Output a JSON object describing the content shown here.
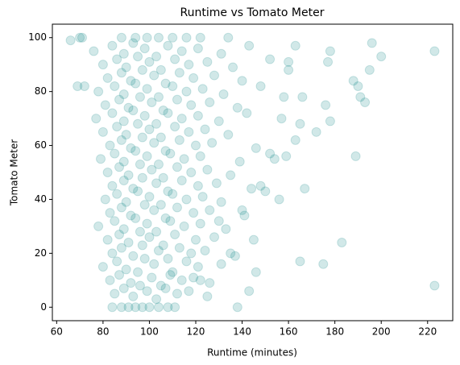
{
  "chart_data": {
    "type": "scatter",
    "title": "Runtime vs Tomato Meter",
    "x_label": "Runtime (minutes)",
    "y_label": "Tomato Meter",
    "color": "#008080",
    "alpha": 0.18,
    "xlim": [
      58.15,
      230.85
    ],
    "ylim": [
      -5,
      105
    ],
    "xticks": [
      60,
      80,
      100,
      120,
      140,
      160,
      180,
      200,
      220
    ],
    "yticks": [
      0,
      20,
      40,
      60,
      80,
      100
    ],
    "points": [
      [
        84,
        0
      ],
      [
        88,
        0
      ],
      [
        91,
        0
      ],
      [
        94,
        0
      ],
      [
        97,
        0
      ],
      [
        100,
        0
      ],
      [
        104,
        0
      ],
      [
        108,
        0
      ],
      [
        111,
        0
      ],
      [
        85,
        5
      ],
      [
        89,
        7
      ],
      [
        93,
        4
      ],
      [
        96,
        8
      ],
      [
        99,
        6
      ],
      [
        103,
        3
      ],
      [
        107,
        7
      ],
      [
        112,
        5
      ],
      [
        117,
        6
      ],
      [
        83,
        10
      ],
      [
        87,
        12
      ],
      [
        92,
        9
      ],
      [
        95,
        13
      ],
      [
        101,
        11
      ],
      [
        105,
        8
      ],
      [
        109,
        12
      ],
      [
        114,
        10
      ],
      [
        119,
        11
      ],
      [
        126,
        9
      ],
      [
        80,
        15
      ],
      [
        86,
        17
      ],
      [
        90,
        14
      ],
      [
        98,
        18
      ],
      [
        102,
        16
      ],
      [
        110,
        13
      ],
      [
        116,
        17
      ],
      [
        121,
        15
      ],
      [
        131,
        16
      ],
      [
        84,
        20
      ],
      [
        88,
        22
      ],
      [
        93,
        19
      ],
      [
        97,
        23
      ],
      [
        104,
        21
      ],
      [
        108,
        18
      ],
      [
        113,
        22
      ],
      [
        118,
        20
      ],
      [
        124,
        21
      ],
      [
        137,
        19
      ],
      [
        82,
        25
      ],
      [
        87,
        27
      ],
      [
        91,
        24
      ],
      [
        96,
        28
      ],
      [
        100,
        26
      ],
      [
        106,
        23
      ],
      [
        111,
        27
      ],
      [
        120,
        25
      ],
      [
        128,
        26
      ],
      [
        78,
        30
      ],
      [
        85,
        32
      ],
      [
        89,
        29
      ],
      [
        94,
        33
      ],
      [
        99,
        31
      ],
      [
        103,
        28
      ],
      [
        109,
        32
      ],
      [
        115,
        30
      ],
      [
        122,
        31
      ],
      [
        133,
        29
      ],
      [
        83,
        35
      ],
      [
        88,
        37
      ],
      [
        92,
        34
      ],
      [
        98,
        38
      ],
      [
        102,
        36
      ],
      [
        107,
        33
      ],
      [
        112,
        37
      ],
      [
        119,
        35
      ],
      [
        126,
        36
      ],
      [
        141,
        34
      ],
      [
        81,
        40
      ],
      [
        86,
        42
      ],
      [
        90,
        39
      ],
      [
        95,
        43
      ],
      [
        100,
        41
      ],
      [
        105,
        38
      ],
      [
        110,
        42
      ],
      [
        116,
        40
      ],
      [
        123,
        41
      ],
      [
        131,
        39
      ],
      [
        84,
        45
      ],
      [
        89,
        47
      ],
      [
        93,
        44
      ],
      [
        97,
        48
      ],
      [
        103,
        46
      ],
      [
        108,
        43
      ],
      [
        114,
        47
      ],
      [
        121,
        45
      ],
      [
        129,
        46
      ],
      [
        144,
        44
      ],
      [
        82,
        50
      ],
      [
        87,
        52
      ],
      [
        91,
        49
      ],
      [
        96,
        53
      ],
      [
        101,
        51
      ],
      [
        106,
        48
      ],
      [
        112,
        52
      ],
      [
        118,
        50
      ],
      [
        125,
        51
      ],
      [
        135,
        49
      ],
      [
        79,
        55
      ],
      [
        85,
        57
      ],
      [
        89,
        54
      ],
      [
        94,
        58
      ],
      [
        99,
        56
      ],
      [
        104,
        53
      ],
      [
        109,
        57
      ],
      [
        115,
        55
      ],
      [
        122,
        56
      ],
      [
        139,
        54
      ],
      [
        83,
        60
      ],
      [
        88,
        62
      ],
      [
        92,
        59
      ],
      [
        97,
        63
      ],
      [
        102,
        61
      ],
      [
        107,
        58
      ],
      [
        113,
        62
      ],
      [
        120,
        60
      ],
      [
        127,
        61
      ],
      [
        146,
        59
      ],
      [
        80,
        65
      ],
      [
        86,
        67
      ],
      [
        90,
        64
      ],
      [
        95,
        68
      ],
      [
        100,
        66
      ],
      [
        105,
        63
      ],
      [
        111,
        67
      ],
      [
        117,
        65
      ],
      [
        124,
        66
      ],
      [
        134,
        64
      ],
      [
        77,
        70
      ],
      [
        84,
        72
      ],
      [
        89,
        69
      ],
      [
        93,
        73
      ],
      [
        98,
        71
      ],
      [
        103,
        68
      ],
      [
        108,
        72
      ],
      [
        114,
        70
      ],
      [
        121,
        71
      ],
      [
        130,
        69
      ],
      [
        142,
        72
      ],
      [
        81,
        75
      ],
      [
        87,
        77
      ],
      [
        91,
        74
      ],
      [
        96,
        78
      ],
      [
        101,
        76
      ],
      [
        106,
        73
      ],
      [
        112,
        77
      ],
      [
        118,
        75
      ],
      [
        126,
        76
      ],
      [
        138,
        74
      ],
      [
        78,
        80
      ],
      [
        85,
        82
      ],
      [
        89,
        79
      ],
      [
        94,
        83
      ],
      [
        99,
        81
      ],
      [
        104,
        78
      ],
      [
        110,
        82
      ],
      [
        116,
        80
      ],
      [
        123,
        81
      ],
      [
        132,
        79
      ],
      [
        148,
        82
      ],
      [
        82,
        85
      ],
      [
        88,
        87
      ],
      [
        92,
        84
      ],
      [
        97,
        88
      ],
      [
        102,
        86
      ],
      [
        107,
        83
      ],
      [
        113,
        87
      ],
      [
        119,
        85
      ],
      [
        128,
        86
      ],
      [
        140,
        84
      ],
      [
        80,
        90
      ],
      [
        86,
        92
      ],
      [
        90,
        89
      ],
      [
        95,
        93
      ],
      [
        100,
        91
      ],
      [
        105,
        88
      ],
      [
        111,
        92
      ],
      [
        117,
        90
      ],
      [
        125,
        91
      ],
      [
        136,
        89
      ],
      [
        152,
        92
      ],
      [
        76,
        95
      ],
      [
        84,
        97
      ],
      [
        89,
        94
      ],
      [
        93,
        98
      ],
      [
        98,
        96
      ],
      [
        103,
        93
      ],
      [
        108,
        97
      ],
      [
        114,
        95
      ],
      [
        121,
        96
      ],
      [
        131,
        94
      ],
      [
        143,
        97
      ],
      [
        88,
        100
      ],
      [
        94,
        100
      ],
      [
        99,
        100
      ],
      [
        104,
        100
      ],
      [
        110,
        100
      ],
      [
        116,
        100
      ],
      [
        122,
        100
      ],
      [
        134,
        100
      ],
      [
        66,
        99
      ],
      [
        70,
        100
      ],
      [
        71,
        100
      ],
      [
        69,
        82
      ],
      [
        72,
        82
      ],
      [
        223,
        95
      ],
      [
        223,
        8
      ],
      [
        200,
        93
      ],
      [
        196,
        98
      ],
      [
        195,
        88
      ],
      [
        189,
        56
      ],
      [
        183,
        24
      ],
      [
        188,
        84
      ],
      [
        190,
        82
      ],
      [
        191,
        78
      ],
      [
        193,
        76
      ],
      [
        175,
        16
      ],
      [
        165,
        17
      ],
      [
        178,
        95
      ],
      [
        177,
        91
      ],
      [
        176,
        75
      ],
      [
        178,
        69
      ],
      [
        172,
        65
      ],
      [
        167,
        44
      ],
      [
        163,
        62
      ],
      [
        165,
        68
      ],
      [
        166,
        78
      ],
      [
        163,
        97
      ],
      [
        160,
        91
      ],
      [
        160,
        88
      ],
      [
        158,
        78
      ],
      [
        157,
        70
      ],
      [
        159,
        56
      ],
      [
        154,
        55
      ],
      [
        152,
        57
      ],
      [
        150,
        43
      ],
      [
        156,
        40
      ],
      [
        148,
        45
      ],
      [
        145,
        25
      ],
      [
        143,
        6
      ],
      [
        138,
        0
      ],
      [
        140,
        36
      ],
      [
        146,
        13
      ],
      [
        135,
        20
      ],
      [
        130,
        32
      ],
      [
        125,
        4
      ],
      [
        122,
        10
      ]
    ]
  }
}
